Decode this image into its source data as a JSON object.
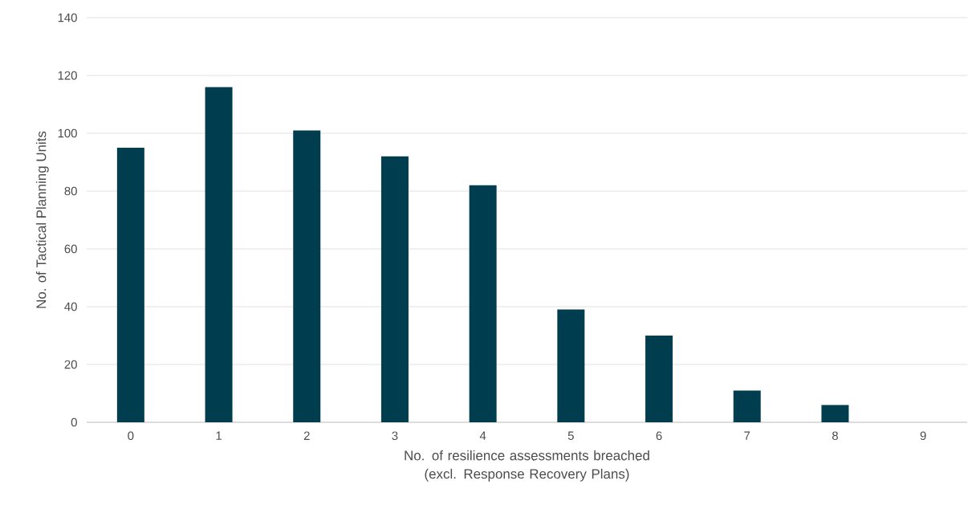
{
  "chart_data": {
    "type": "bar",
    "xlabel": "No. of resilience assessments breached (excl. Response Recovery Plans)",
    "ylabel": "No. of Tactical Planning Units",
    "categories": [
      "0",
      "1",
      "2",
      "3",
      "4",
      "5",
      "6",
      "7",
      "8",
      "9"
    ],
    "values": [
      95,
      116,
      101,
      92,
      82,
      39,
      30,
      11,
      6,
      0
    ],
    "color": "#003d4f",
    "ylim": [
      0,
      140
    ],
    "yticks": [
      0,
      20,
      40,
      60,
      80,
      100,
      120,
      140
    ],
    "grid": "y"
  }
}
